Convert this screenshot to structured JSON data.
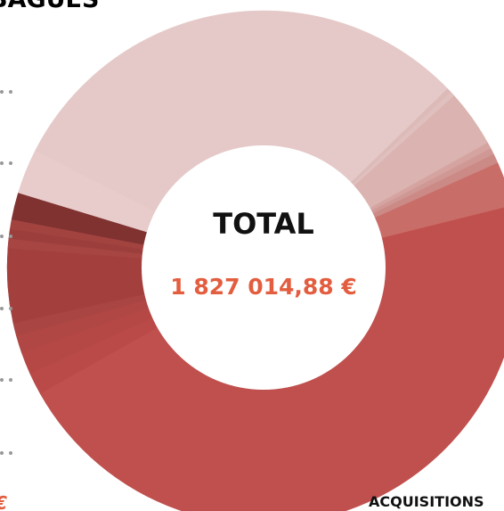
{
  "page_title": "BAGUES",
  "chart_data": {
    "type": "donut",
    "center_title": "TOTAL",
    "center_value": "1 827 014,88 €",
    "values": [
      30.3,
      0.3,
      0.3,
      3.6,
      0.4,
      0.4,
      0.6,
      2.8,
      45.8,
      1.4,
      1.4,
      1.1,
      0.8,
      4.7,
      0.6,
      0.6,
      0.6,
      1.7,
      2.8
    ],
    "colors": [
      "#e5c9c8",
      "#dcbab8",
      "#e0c0be",
      "#dbb3b0",
      "#d5a3a0",
      "#d09894",
      "#cc8a86",
      "#c96d69",
      "#c0504d",
      "#b94a47",
      "#b54845",
      "#b04744",
      "#a94542",
      "#a3403d",
      "#a64542",
      "#9c3e3b",
      "#a24340",
      "#7f3230",
      "#e8cccb"
    ]
  },
  "footer_left": "€",
  "footer_right": "ACQUISITIONS"
}
